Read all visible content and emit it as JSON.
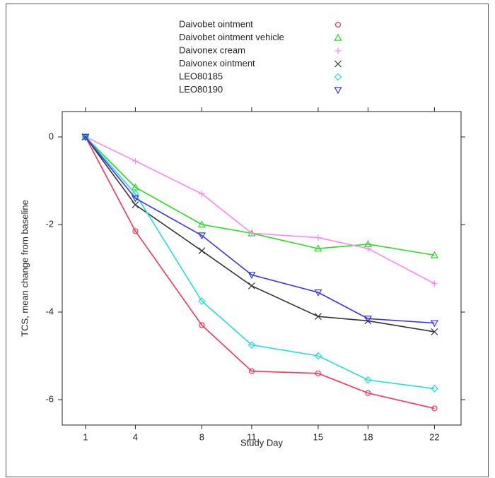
{
  "chart_data": {
    "type": "line",
    "x_label": "Study Day",
    "y_label": "TCS, mean change from baseline",
    "x": [
      1,
      4,
      8,
      11,
      15,
      18,
      22
    ],
    "xlim": [
      -0.4,
      23.6
    ],
    "xticks": [
      1,
      4,
      8,
      11,
      15,
      18,
      22
    ],
    "ylim": [
      -6.58,
      0.58
    ],
    "yticks": [
      0,
      -2,
      -4,
      -6
    ],
    "legend": "top",
    "series": [
      {
        "name": "Daivobet ointment",
        "color": "#ff3355",
        "marker": "circle",
        "values": [
          0,
          -2.15,
          -4.3,
          -5.35,
          -5.4,
          -5.85,
          -6.2
        ]
      },
      {
        "name": "Daivobet ointment vehicle",
        "color": "#22dd22",
        "marker": "triangle-up",
        "values": [
          0,
          -1.15,
          -2.0,
          -2.2,
          -2.55,
          -2.45,
          -2.7
        ]
      },
      {
        "name": "Daivonex cream",
        "color": "#ff88ee",
        "marker": "plus",
        "values": [
          0,
          -0.55,
          -1.3,
          -2.2,
          -2.3,
          -2.55,
          -3.35
        ]
      },
      {
        "name": "Daivonex ointment",
        "color": "#333333",
        "marker": "cross",
        "values": [
          0,
          -1.55,
          -2.6,
          -3.4,
          -4.1,
          -4.2,
          -4.45
        ]
      },
      {
        "name": "LEO80185",
        "color": "#22dddd",
        "marker": "diamond",
        "values": [
          0,
          -1.3,
          -3.75,
          -4.75,
          -5.0,
          -5.55,
          -5.75
        ]
      },
      {
        "name": "LEO80190",
        "color": "#3333ff",
        "marker": "triangle-down",
        "values": [
          0,
          -1.4,
          -2.25,
          -3.15,
          -3.55,
          -4.15,
          -4.25
        ]
      }
    ]
  }
}
